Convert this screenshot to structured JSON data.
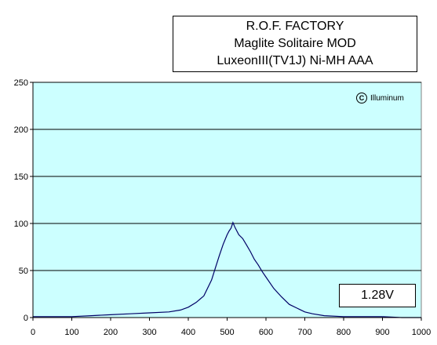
{
  "title_lines": [
    "R.O.F. FACTORY",
    "Maglite Solitaire MOD",
    "LuxeonIII(TV1J) Ni-MH AAA"
  ],
  "watermark": {
    "symbol": "C",
    "text": "Illuminum"
  },
  "voltage_label": "1.28V",
  "chart_data": {
    "type": "line",
    "title": "",
    "xlabel": "",
    "ylabel": "",
    "xlim": [
      0,
      1000
    ],
    "ylim": [
      0,
      250
    ],
    "x_ticks": [
      0,
      100,
      200,
      300,
      400,
      500,
      600,
      700,
      800,
      900,
      1000
    ],
    "y_ticks": [
      0,
      50,
      100,
      150,
      200,
      250
    ],
    "grid": "horizontal",
    "plot_background": "#ccffff",
    "series": [
      {
        "color": "#000066",
        "x": [
          0,
          50,
          100,
          150,
          200,
          250,
          300,
          350,
          380,
          400,
          420,
          440,
          460,
          470,
          480,
          490,
          500,
          505,
          510,
          515,
          520,
          525,
          530,
          540,
          550,
          560,
          570,
          580,
          590,
          600,
          620,
          640,
          660,
          680,
          700,
          720,
          750,
          800,
          850,
          900,
          950,
          1000
        ],
        "y": [
          1,
          1,
          1,
          2,
          3,
          4,
          5,
          6,
          8,
          11,
          16,
          23,
          40,
          53,
          66,
          78,
          88,
          92,
          95,
          101,
          96,
          92,
          88,
          84,
          77,
          70,
          62,
          56,
          49,
          43,
          31,
          22,
          14,
          10,
          6,
          4,
          2,
          1,
          1,
          1,
          0,
          0
        ]
      }
    ]
  }
}
